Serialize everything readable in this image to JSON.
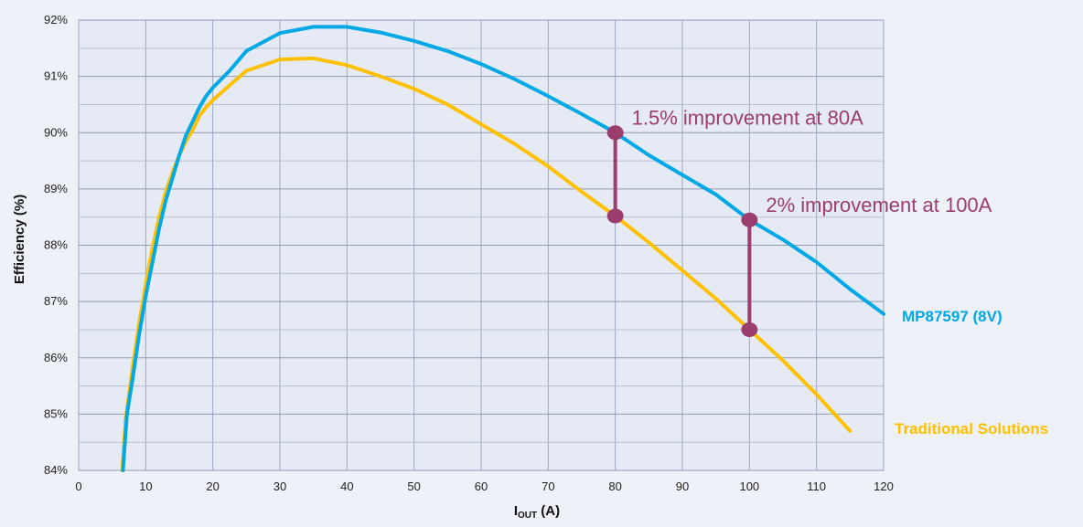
{
  "chart_data": {
    "type": "line",
    "title": "",
    "xlabel_main": "I",
    "xlabel_sub": "OUT",
    "xlabel_unit": " (A)",
    "ylabel": "Efficiency (%)",
    "xlim": [
      0,
      120
    ],
    "ylim": [
      84,
      92
    ],
    "x_ticks": [
      0,
      10,
      20,
      30,
      40,
      50,
      60,
      70,
      80,
      90,
      100,
      110,
      120
    ],
    "y_ticks": [
      84,
      85,
      86,
      87,
      88,
      89,
      90,
      91,
      92
    ],
    "y_tick_labels": [
      "84%",
      "85%",
      "86%",
      "87%",
      "88%",
      "89%",
      "90%",
      "91%",
      "92%"
    ],
    "grid": true,
    "series": [
      {
        "name": "MP87597 (8V)",
        "color": "#00a8e6",
        "points": [
          [
            6.6,
            84.0
          ],
          [
            7.2,
            85.0
          ],
          [
            8,
            85.6
          ],
          [
            9,
            86.4
          ],
          [
            10,
            87.1
          ],
          [
            11,
            87.7
          ],
          [
            12,
            88.3
          ],
          [
            13,
            88.8
          ],
          [
            14,
            89.2
          ],
          [
            15,
            89.6
          ],
          [
            16,
            89.95
          ],
          [
            17,
            90.2
          ],
          [
            18,
            90.45
          ],
          [
            19,
            90.65
          ],
          [
            20,
            90.8
          ],
          [
            22.5,
            91.1
          ],
          [
            25,
            91.45
          ],
          [
            30,
            91.77
          ],
          [
            35,
            91.88
          ],
          [
            40,
            91.88
          ],
          [
            45,
            91.78
          ],
          [
            50,
            91.63
          ],
          [
            55,
            91.45
          ],
          [
            60,
            91.22
          ],
          [
            65,
            90.95
          ],
          [
            70,
            90.65
          ],
          [
            75,
            90.33
          ],
          [
            80,
            90.0
          ],
          [
            85,
            89.6
          ],
          [
            90,
            89.25
          ],
          [
            95,
            88.9
          ],
          [
            100,
            88.45
          ],
          [
            105,
            88.1
          ],
          [
            110,
            87.7
          ],
          [
            115,
            87.22
          ],
          [
            120,
            86.78
          ]
        ]
      },
      {
        "name": "Traditional Solutions",
        "color": "#ffc000",
        "points": [
          [
            6.5,
            84.0
          ],
          [
            7.0,
            84.9
          ],
          [
            8,
            85.8
          ],
          [
            9,
            86.6
          ],
          [
            10,
            87.3
          ],
          [
            11,
            87.95
          ],
          [
            12,
            88.5
          ],
          [
            13,
            88.95
          ],
          [
            14,
            89.3
          ],
          [
            15,
            89.6
          ],
          [
            16,
            89.85
          ],
          [
            17,
            90.05
          ],
          [
            18,
            90.3
          ],
          [
            19,
            90.45
          ],
          [
            20,
            90.58
          ],
          [
            25,
            91.1
          ],
          [
            30,
            91.3
          ],
          [
            35,
            91.32
          ],
          [
            40,
            91.2
          ],
          [
            45,
            91.0
          ],
          [
            50,
            90.78
          ],
          [
            55,
            90.5
          ],
          [
            60,
            90.15
          ],
          [
            65,
            89.8
          ],
          [
            70,
            89.4
          ],
          [
            75,
            88.95
          ],
          [
            80,
            88.52
          ],
          [
            85,
            88.05
          ],
          [
            90,
            87.55
          ],
          [
            95,
            87.05
          ],
          [
            100,
            86.5
          ],
          [
            105,
            85.95
          ],
          [
            110,
            85.35
          ],
          [
            115,
            84.7
          ]
        ]
      }
    ],
    "markers": [
      {
        "x": 80,
        "y_top": 90.0,
        "y_bottom": 88.52,
        "label": "1.5% improvement at 80A"
      },
      {
        "x": 100,
        "y_top": 88.45,
        "y_bottom": 86.5,
        "label": "2% improvement at 100A"
      }
    ],
    "annotation_color": "#9b3d6e",
    "legend_placement": "right"
  }
}
